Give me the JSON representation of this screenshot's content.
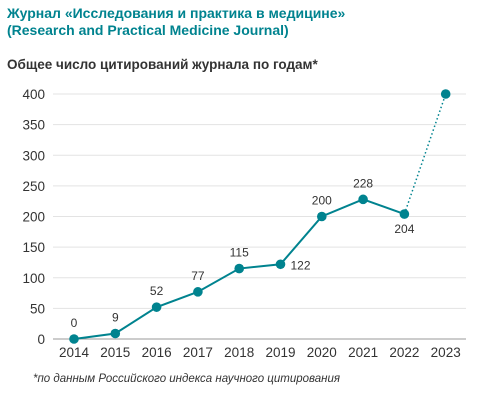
{
  "chart_data": {
    "type": "line",
    "title_line1": "Журнал «Исследования и практика в медицине»",
    "title_line2": "(Research and Practical Medicine Journal)",
    "subtitle": "Общее число цитирований журнала по годам*",
    "footnote": "*по данным Российского индекса научного цитирования",
    "x": [
      "2014",
      "2015",
      "2016",
      "2017",
      "2018",
      "2019",
      "2020",
      "2021",
      "2022",
      "2023"
    ],
    "series": [
      {
        "values": [
          0,
          9,
          52,
          77,
          115,
          122,
          200,
          228,
          204,
          400
        ]
      }
    ],
    "data_labels": [
      "0",
      "9",
      "52",
      "77",
      "115",
      "122",
      "200",
      "228",
      "204",
      ""
    ],
    "dotted_segment_last": true,
    "ylim": [
      0,
      400
    ],
    "yticks": [
      0,
      50,
      100,
      150,
      200,
      250,
      300,
      350,
      400
    ],
    "grid": true,
    "color": "#00838f"
  }
}
